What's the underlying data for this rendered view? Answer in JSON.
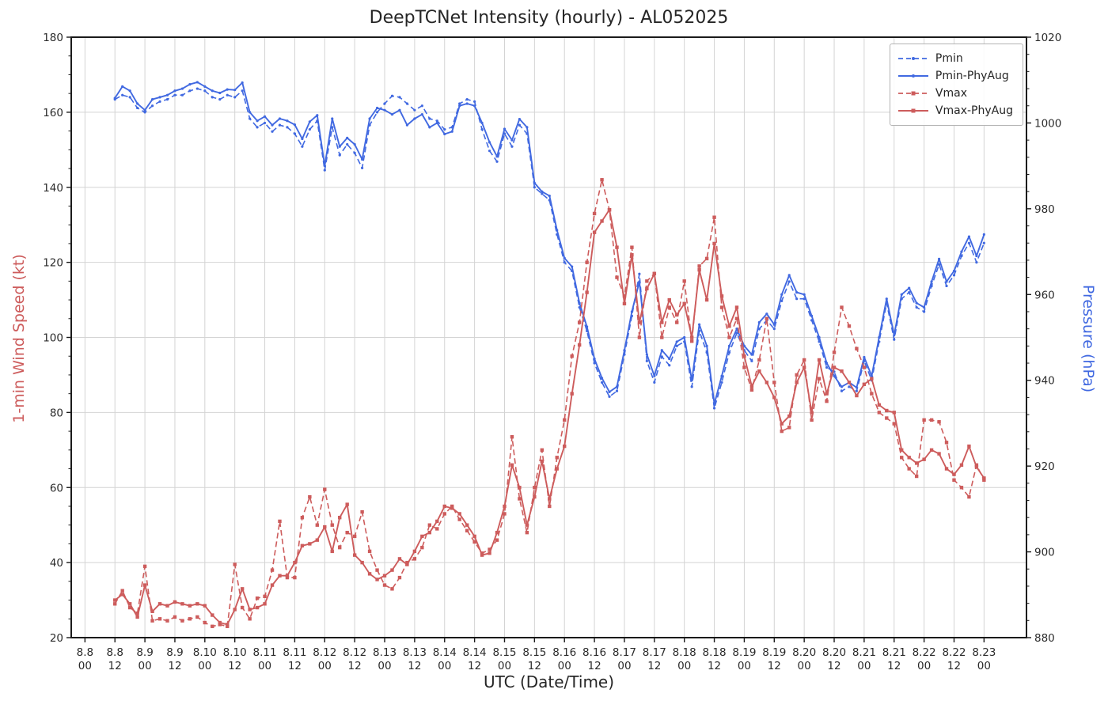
{
  "chart_data": {
    "type": "line",
    "title": "DeepTCNet Intensity (hourly) - AL052025",
    "xlabel": "UTC (Date/Time)",
    "ylabel_left": "1-min Wind Speed (kt)",
    "ylabel_right": "Pressure (hPa)",
    "grid": true,
    "legend_position": "upper right",
    "left_axis_color": "#CD5C5C",
    "right_axis_color": "#4169E1",
    "grid_color": "#d4d4d4",
    "spine_color": "#1a1a1a",
    "tick_text_color": "#2b2b2b",
    "ylim_left": [
      20,
      180
    ],
    "ylim_right": [
      880,
      1020
    ],
    "xlim_hours": [
      -5.5,
      377
    ],
    "y_ticks_left": [
      20,
      40,
      60,
      80,
      100,
      120,
      140,
      160,
      180
    ],
    "y_ticks_right": [
      880,
      900,
      920,
      940,
      960,
      980,
      1000,
      1020
    ],
    "y_minor_step_left": 5,
    "y_minor_step_right": 4,
    "x_tick_step_hours": 12,
    "x_ticks": [
      [
        "8.8",
        "00"
      ],
      [
        "8.8",
        "12"
      ],
      [
        "8.9",
        "00"
      ],
      [
        "8.9",
        "12"
      ],
      [
        "8.10",
        "00"
      ],
      [
        "8.10",
        "12"
      ],
      [
        "8.11",
        "00"
      ],
      [
        "8.11",
        "12"
      ],
      [
        "8.12",
        "00"
      ],
      [
        "8.12",
        "12"
      ],
      [
        "8.13",
        "00"
      ],
      [
        "8.13",
        "12"
      ],
      [
        "8.14",
        "00"
      ],
      [
        "8.14",
        "12"
      ],
      [
        "8.15",
        "00"
      ],
      [
        "8.15",
        "12"
      ],
      [
        "8.16",
        "00"
      ],
      [
        "8.16",
        "12"
      ],
      [
        "8.17",
        "00"
      ],
      [
        "8.17",
        "12"
      ],
      [
        "8.18",
        "00"
      ],
      [
        "8.18",
        "12"
      ],
      [
        "8.19",
        "00"
      ],
      [
        "8.19",
        "12"
      ],
      [
        "8.20",
        "00"
      ],
      [
        "8.20",
        "12"
      ],
      [
        "8.21",
        "00"
      ],
      [
        "8.21",
        "12"
      ],
      [
        "8.22",
        "00"
      ],
      [
        "8.22",
        "12"
      ],
      [
        "8.23",
        "00"
      ]
    ],
    "t_start_hour": 12,
    "t_step_hours": 3,
    "series": [
      {
        "name": "Pmin",
        "axis": "right",
        "color": "#4169E1",
        "style": "dashed",
        "marker": "dot",
        "values": [
          1005.5,
          1006.5,
          1006,
          1003.5,
          1002.5,
          1004,
          1005,
          1005.5,
          1006.5,
          1006.5,
          1007.5,
          1008,
          1007.5,
          1006,
          1005.5,
          1006.5,
          1006,
          1007.5,
          1001,
          999,
          1000,
          998,
          999.5,
          999,
          997.5,
          994.5,
          998.5,
          1000.5,
          989,
          999,
          992.5,
          995,
          993,
          989.5,
          999.5,
          1002.5,
          1004.5,
          1006.3,
          1006,
          1004.5,
          1003,
          1004,
          1001,
          1000.5,
          998.5,
          999,
          1004.5,
          1005.5,
          1005,
          998.5,
          993.5,
          991,
          997.5,
          994.5,
          999.5,
          997.5,
          985,
          983.5,
          982,
          974,
          967.5,
          965.5,
          957,
          951.5,
          944,
          939.5,
          936.2,
          937.5,
          946,
          955,
          964.8,
          944.5,
          939.5,
          945.5,
          943.5,
          948,
          949,
          938.5,
          951.5,
          946.5,
          933.5,
          939.5,
          946.5,
          951,
          947,
          944.5,
          952,
          954,
          952,
          958.5,
          963,
          959,
          959,
          954,
          949,
          943,
          942,
          937.5,
          938.5,
          937.5,
          944.5,
          940,
          949,
          958,
          949.5,
          959,
          960.5,
          957,
          956,
          962,
          967,
          962,
          964.5,
          969,
          972,
          967.5,
          972
        ]
      },
      {
        "name": "Pmin-PhyAug",
        "axis": "right",
        "color": "#4169E1",
        "style": "solid",
        "marker": "dot",
        "values": [
          1005.8,
          1008.5,
          1007.5,
          1004.5,
          1003,
          1005.5,
          1006,
          1006.5,
          1007.5,
          1008,
          1009,
          1009.5,
          1008.5,
          1007.5,
          1007,
          1007.8,
          1007.7,
          1009.4,
          1002.5,
          1000.5,
          1001.5,
          999.5,
          1001,
          1000.5,
          999.6,
          996.3,
          1000.3,
          1001.8,
          990,
          1001,
          994.5,
          996.5,
          995,
          991.5,
          1001,
          1003.5,
          1003,
          1002,
          1003,
          999.5,
          1001,
          1002,
          999,
          1000,
          997.4,
          998,
          1004,
          1004.5,
          1004,
          1000,
          995.5,
          992.2,
          998.6,
          996,
          1000.9,
          999,
          986,
          984,
          983,
          975,
          968.5,
          966.5,
          958,
          952.5,
          945,
          940.5,
          937.3,
          938.5,
          947,
          956,
          963,
          946,
          941,
          947,
          945,
          949,
          950,
          940,
          953,
          948,
          934.5,
          941,
          948,
          952,
          948,
          946,
          953.5,
          955.5,
          953,
          960,
          964.5,
          960.5,
          960,
          955,
          950,
          944,
          941,
          938.5,
          939.5,
          938.3,
          945.4,
          941,
          950,
          959,
          950.5,
          960,
          961.5,
          958,
          957,
          963,
          968.3,
          963,
          965.5,
          970,
          973.5,
          969,
          974
        ]
      },
      {
        "name": "Vmax",
        "axis": "left",
        "color": "#CD5C5C",
        "style": "dashed",
        "marker": "square",
        "values": [
          29,
          32.5,
          28,
          26.5,
          39,
          24.5,
          25,
          24.5,
          25.5,
          24.5,
          25,
          25.5,
          24,
          23,
          23.5,
          23,
          39.5,
          28,
          25,
          30.5,
          31,
          38,
          51,
          36,
          36,
          52,
          57.5,
          50,
          59.5,
          50,
          44,
          48,
          47,
          53.5,
          43,
          38,
          34,
          33,
          36,
          40,
          41,
          44,
          50,
          49,
          53,
          55,
          51.5,
          48.5,
          45.5,
          42.5,
          43.5,
          46,
          53,
          73.5,
          57,
          48,
          60,
          70,
          55,
          68,
          78,
          95,
          104,
          120,
          133,
          142,
          134,
          116,
          111,
          124,
          100,
          115,
          117,
          100,
          108,
          104,
          115,
          99,
          119,
          121,
          132,
          108,
          100,
          105,
          92,
          86,
          94,
          105,
          88,
          75,
          76,
          90,
          94,
          78,
          89,
          83,
          96,
          108,
          103,
          97,
          92,
          85,
          80,
          78.5,
          77,
          68,
          65,
          63,
          78,
          78,
          77.5,
          72,
          62,
          60,
          57.5,
          66,
          62
        ]
      },
      {
        "name": "Vmax-PhyAug",
        "axis": "left",
        "color": "#CD5C5C",
        "style": "solid",
        "marker": "square",
        "values": [
          30,
          31.5,
          29,
          25.5,
          34,
          27,
          29,
          28.5,
          29.5,
          29,
          28.5,
          29,
          28.5,
          26,
          24,
          23.5,
          27.5,
          33,
          27.5,
          28,
          29,
          34,
          36.5,
          36.5,
          40,
          44.5,
          45,
          46,
          49.5,
          43,
          52,
          55.5,
          42,
          40,
          37,
          35.5,
          36.5,
          38,
          41,
          39.5,
          43,
          47,
          48,
          51,
          55,
          54.5,
          53,
          50,
          47,
          42,
          42.5,
          48,
          55,
          66,
          60,
          50,
          57.5,
          67,
          57,
          65,
          71,
          85,
          98,
          112,
          128,
          131,
          134,
          124,
          109,
          122,
          104,
          113,
          117,
          104,
          110,
          106,
          109,
          100,
          118,
          110,
          125,
          111,
          103,
          108,
          95,
          87,
          91,
          88,
          84,
          77,
          79,
          88,
          92,
          80,
          94,
          85,
          92,
          91,
          88,
          84.5,
          87.5,
          89,
          82,
          80.5,
          80,
          70,
          68,
          66.5,
          67.5,
          70,
          69,
          65,
          63.5,
          66,
          71,
          65.5,
          62.5
        ]
      }
    ]
  }
}
